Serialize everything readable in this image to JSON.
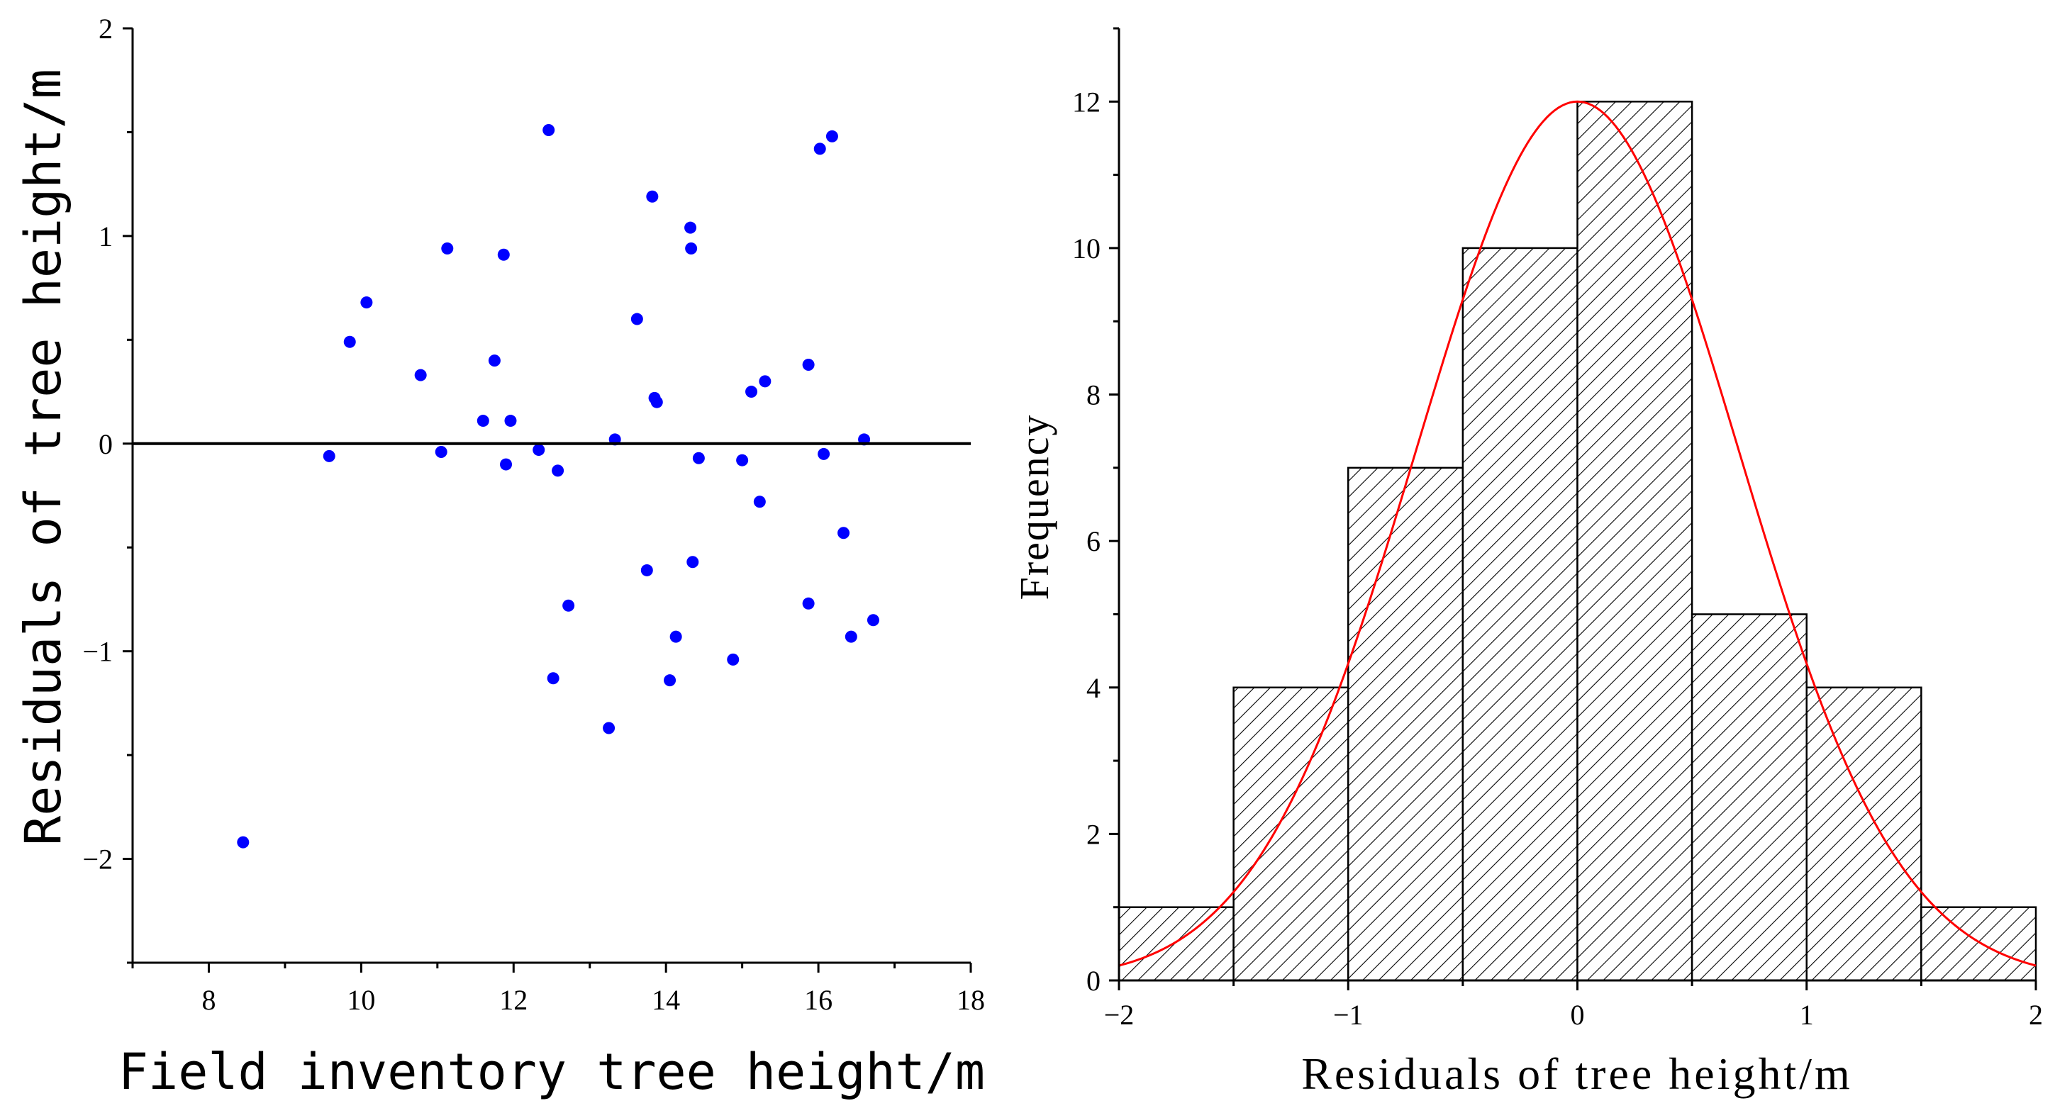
{
  "chart_data": [
    {
      "type": "scatter",
      "title": "",
      "xlabel": "Field inventory tree height/m",
      "ylabel": "Residuals of tree height/m",
      "xlim": [
        7,
        18
      ],
      "ylim": [
        -2.5,
        2
      ],
      "xticks": [
        8,
        10,
        12,
        14,
        16,
        18
      ],
      "yticks": [
        -2,
        -1,
        0,
        1,
        2
      ],
      "xtick_labels": [
        "8",
        "10",
        "12",
        "14",
        "16",
        "18"
      ],
      "ytick_labels": [
        "−2",
        "−1",
        "0",
        "1",
        "2"
      ],
      "reference_line_y": 0,
      "point_color": "#0000ff",
      "reference_line_color": "#000000",
      "points": [
        {
          "x": 8.45,
          "y": -1.92
        },
        {
          "x": 9.58,
          "y": -0.06
        },
        {
          "x": 9.85,
          "y": 0.49
        },
        {
          "x": 10.07,
          "y": 0.68
        },
        {
          "x": 10.78,
          "y": 0.33
        },
        {
          "x": 11.05,
          "y": -0.04
        },
        {
          "x": 11.13,
          "y": 0.94
        },
        {
          "x": 11.6,
          "y": 0.11
        },
        {
          "x": 11.75,
          "y": 0.4
        },
        {
          "x": 11.87,
          "y": 0.91
        },
        {
          "x": 11.9,
          "y": -0.1
        },
        {
          "x": 11.96,
          "y": 0.11
        },
        {
          "x": 12.33,
          "y": -0.03
        },
        {
          "x": 12.46,
          "y": 1.51
        },
        {
          "x": 12.52,
          "y": -1.13
        },
        {
          "x": 12.58,
          "y": -0.13
        },
        {
          "x": 12.72,
          "y": -0.78
        },
        {
          "x": 13.25,
          "y": -1.37
        },
        {
          "x": 13.33,
          "y": 0.02
        },
        {
          "x": 13.62,
          "y": 0.6
        },
        {
          "x": 13.75,
          "y": -0.61
        },
        {
          "x": 13.82,
          "y": 1.19
        },
        {
          "x": 13.85,
          "y": 0.22
        },
        {
          "x": 13.88,
          "y": 0.2
        },
        {
          "x": 14.05,
          "y": -1.14
        },
        {
          "x": 14.13,
          "y": -0.93
        },
        {
          "x": 14.32,
          "y": 1.04
        },
        {
          "x": 14.33,
          "y": 0.94
        },
        {
          "x": 14.35,
          "y": -0.57
        },
        {
          "x": 14.43,
          "y": -0.07
        },
        {
          "x": 14.88,
          "y": -1.04
        },
        {
          "x": 15.0,
          "y": -0.08
        },
        {
          "x": 15.12,
          "y": 0.25
        },
        {
          "x": 15.23,
          "y": -0.28
        },
        {
          "x": 15.3,
          "y": 0.3
        },
        {
          "x": 15.87,
          "y": 0.38
        },
        {
          "x": 15.87,
          "y": -0.77
        },
        {
          "x": 16.02,
          "y": 1.42
        },
        {
          "x": 16.07,
          "y": -0.05
        },
        {
          "x": 16.18,
          "y": 1.48
        },
        {
          "x": 16.33,
          "y": -0.43
        },
        {
          "x": 16.43,
          "y": -0.93
        },
        {
          "x": 16.6,
          "y": 0.02
        },
        {
          "x": 16.72,
          "y": -0.85
        }
      ]
    },
    {
      "type": "bar",
      "subtype": "histogram",
      "title": "",
      "xlabel": "Residuals of tree height/m",
      "ylabel": "Frequency",
      "xlim": [
        -2,
        2
      ],
      "ylim": [
        0,
        13
      ],
      "xticks": [
        -2,
        -1,
        0,
        1,
        2
      ],
      "yticks": [
        0,
        2,
        4,
        6,
        8,
        10,
        12
      ],
      "xtick_labels": [
        "−2",
        "−1",
        "0",
        "1",
        "2"
      ],
      "ytick_labels": [
        "0",
        "2",
        "4",
        "6",
        "8",
        "10",
        "12"
      ],
      "bin_edges": [
        -2,
        -1.5,
        -1,
        -0.5,
        0,
        0.5,
        1,
        1.5,
        2
      ],
      "values": [
        1,
        4,
        7,
        10,
        12,
        5,
        4,
        1
      ],
      "bar_fill": "hatched",
      "bar_edge_color": "#000000",
      "fit_curve": {
        "type": "normal",
        "color": "#ff0000",
        "mean": 0,
        "sd": 0.7,
        "peak": 12
      }
    }
  ]
}
